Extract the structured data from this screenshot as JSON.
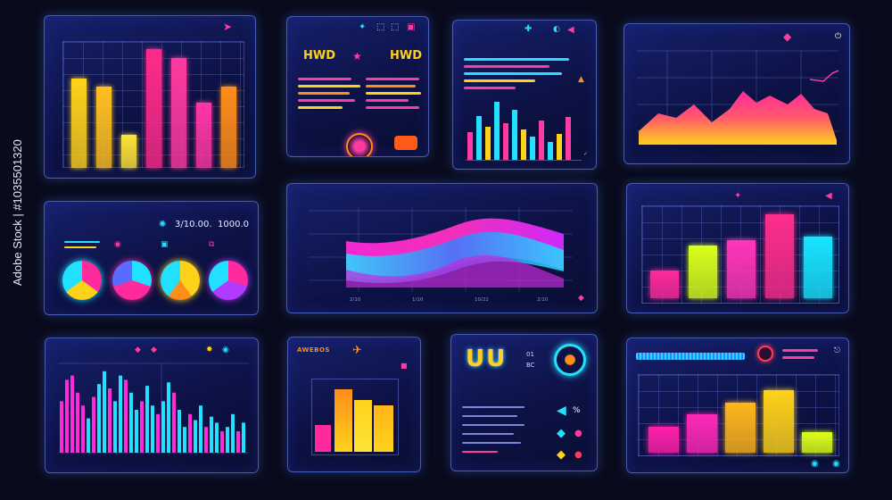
{
  "watermark": "Adobe Stock | #1035501320",
  "panels": {
    "p1": {
      "title": "",
      "chart_data": {
        "type": "bar",
        "values": [
          0.75,
          0.68,
          0.28,
          1.0,
          0.92,
          0.55,
          0.68
        ],
        "colors": [
          "#ffd21a",
          "#ffc020",
          "#ffe33a",
          "#ff2a8a",
          "#ff3aa0",
          "#ff36a6",
          "#ff8d1a"
        ]
      }
    },
    "p2": {
      "title": "",
      "left_label": "HWD",
      "right_label": "HWD",
      "button": ""
    },
    "p3": {
      "title": ""
    },
    "p4": {
      "title": ""
    },
    "p5": {
      "title": "",
      "value_a": "3/10.00.",
      "value_b": "1000.0"
    },
    "p6": {
      "title": "",
      "xticks": [
        "2/10",
        "1/10",
        "10/22",
        "2/10"
      ]
    },
    "p7": {
      "title": "",
      "chart_data": {
        "type": "bar",
        "values": [
          0.32,
          0.62,
          0.68,
          0.98,
          0.72
        ],
        "colors": [
          "#ff2a9c",
          "#d8ff1a",
          "#ff36b8",
          "#ff2d8c",
          "#18e4ff"
        ]
      }
    },
    "p8": {
      "title": ""
    },
    "p9": {
      "title": "AWEBOS"
    },
    "p10": {
      "title": "",
      "logo_text": "UU",
      "side_a": "01",
      "side_b": "BC",
      "pct": "%"
    },
    "p11": {
      "title": "",
      "chart_data": {
        "type": "bar",
        "values": [
          0.35,
          0.52,
          0.68,
          0.85,
          0.28
        ],
        "colors": [
          "#ff1faa",
          "#ff28b8",
          "#ffb51a",
          "#ffd21a",
          "#ddff1a"
        ]
      }
    }
  }
}
